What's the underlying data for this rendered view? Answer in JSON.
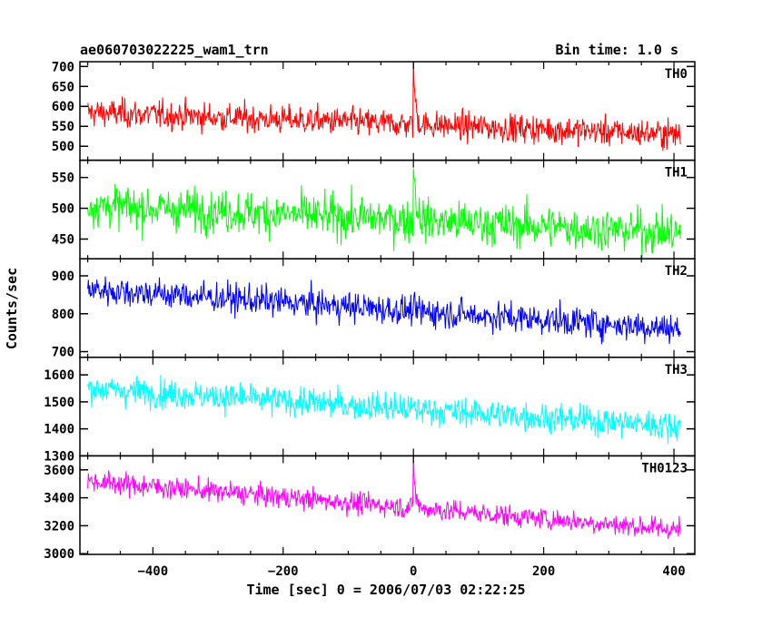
{
  "header": {
    "title": "ae060703022225_wam1_trn",
    "bin_time": "Bin time: 1.0 s"
  },
  "chart_data": {
    "type": "line",
    "title": "ae060703022225_wam1_trn",
    "subtitle": "Bin time: 1.0 s",
    "xlabel": "Time [sec] 0 = 2006/07/03 02:22:25",
    "ylabel": "Counts/sec",
    "xlim": [
      -512,
      432
    ],
    "x_ticks": [
      -400,
      -200,
      0,
      200,
      400
    ],
    "x_tick_labels": [
      "−400",
      "−200",
      "0",
      "200",
      "400"
    ],
    "x_start": -500,
    "x_end": 410,
    "grid": false,
    "panels": [
      {
        "name": "TH0",
        "color": "#ff0000",
        "ylim": [
          465,
          712
        ],
        "yticks": [
          500,
          550,
          600,
          650,
          700
        ],
        "trend_start": 585,
        "trend_end": 530,
        "noise_sd": 25,
        "burst_peak": 710,
        "burst_width": 3,
        "end_value": 505
      },
      {
        "name": "TH1",
        "color": "#00ff00",
        "ylim": [
          418,
          578
        ],
        "yticks": [
          450,
          500,
          550
        ],
        "trend_start": 505,
        "trend_end": 460,
        "noise_sd": 24,
        "burst_peak": 575,
        "burst_width": 4,
        "end_value": 450
      },
      {
        "name": "TH2",
        "color": "#0000ff",
        "ylim": [
          685,
          945
        ],
        "yticks": [
          700,
          800,
          900
        ],
        "trend_start": 865,
        "trend_end": 760,
        "noise_sd": 28,
        "burst_peak": 0,
        "burst_width": 0,
        "end_value": 745
      },
      {
        "name": "TH3",
        "color": "#00ffff",
        "ylim": [
          1300,
          1665
        ],
        "yticks": [
          1300,
          1400,
          1500,
          1600
        ],
        "trend_start": 1550,
        "trend_end": 1410,
        "noise_sd": 38,
        "burst_peak": 0,
        "burst_width": 0,
        "end_value": 1400
      },
      {
        "name": "TH0123",
        "color": "#ff00ff",
        "ylim": [
          2995,
          3700
        ],
        "yticks": [
          3000,
          3200,
          3400,
          3600
        ],
        "trend_start": 3520,
        "trend_end": 3170,
        "noise_sd": 55,
        "burst_peak": 3690,
        "burst_width": 3,
        "end_value": 3140
      }
    ]
  }
}
